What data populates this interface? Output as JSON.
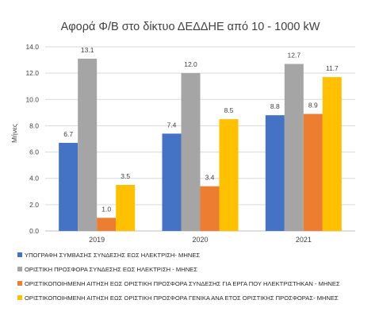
{
  "chart_data": {
    "type": "bar",
    "title": "Αφορά Φ/Β στο δίκτυο ΔΕΔΔΗΕ από 10 - 1000 kW",
    "xlabel": "",
    "ylabel": "Μήνες",
    "ylim": [
      0,
      14
    ],
    "yticks": [
      "0.0",
      "2.0",
      "4.0",
      "6.0",
      "8.0",
      "10.0",
      "12.0",
      "14.0"
    ],
    "grid": true,
    "legend_position": "bottom",
    "categories": [
      "2019",
      "2020",
      "2021"
    ],
    "series": [
      {
        "name": "ΥΠΟΓΡΑΦΗ ΣΥΜΒΑΣΗΣ ΣΥΝΔΕΣΗΣ ΕΩΣ ΗΛΕΚΤΡΙΣΗ- ΜΗΝΕΣ",
        "color": "#4472C4",
        "values": [
          6.7,
          7.4,
          8.8
        ],
        "labels": [
          "6.7",
          "7.4",
          "8.8"
        ]
      },
      {
        "name": "ΟΡΙΣΤΙΚΗ ΠΡΟΣΦΟΡΑ ΣΥΝΔΕΣΗΣ ΕΩΣ ΗΛΕΚΤΡΙΣΗ - ΜΗΝΕΣ",
        "color": "#A5A5A5",
        "values": [
          13.1,
          12.0,
          12.7
        ],
        "labels": [
          "13.1",
          "12.0",
          "12.7"
        ]
      },
      {
        "name": "ΟΡΙΣΤΙΚΟΠΟΙΗΜΕΝΗ ΑΙΤΗΣΗ ΕΩΣ ΟΡΙΣΤΙΚΗ ΠΡΟΣΦΟΡΑ ΣΥΝΔΕΣΗΣ ΓΙΑ ΕΡΓΑ ΠΟΥ ΗΛΕΚΤΡΙΣΤΗΚΑΝ - ΜΗΝΕΣ",
        "color": "#ED7D31",
        "values": [
          1.0,
          3.4,
          8.9
        ],
        "labels": [
          "1.0",
          "3.4",
          "8.9"
        ]
      },
      {
        "name": "ΟΡΙΣΤΙΚΟΠΟΙΗΜΕΝΗ ΑΙΤΗΣΗ ΕΩΣ ΟΡΙΣΤΙΚΗ ΠΡΟΣΦΟΡΑ ΓΕΝΙΚΑ ΑΝΑ ΕΤΟΣ ΟΡΙΣΤΙΚΗΣ ΠΡΟΣΦΟΡΑΣ- ΜΗΝΕΣ",
        "color": "#FFC000",
        "values": [
          3.5,
          8.5,
          11.7
        ],
        "labels": [
          "3.5",
          "8.5",
          "11.7"
        ]
      }
    ]
  }
}
